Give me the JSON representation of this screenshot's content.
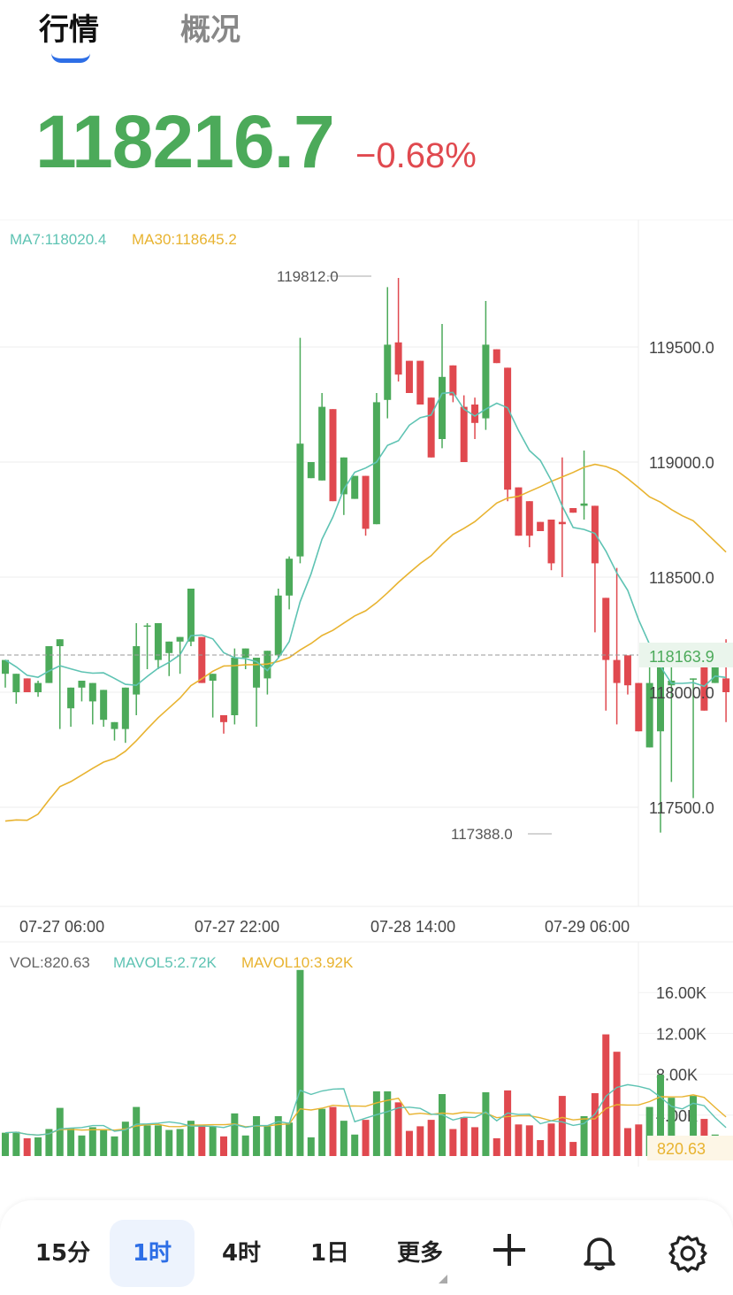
{
  "tabs": {
    "market": "行情",
    "overview": "概况"
  },
  "price": "118216.7",
  "change": "−0.68%",
  "colors": {
    "up": "#4caa5a",
    "down": "#e0494f",
    "ma7": "#5ec3b3",
    "ma30": "#e8b330",
    "accent": "#2d6ee6"
  },
  "indicators": {
    "ma7": "MA7:118020.4",
    "ma30": "MA30:118645.2",
    "vol": "VOL:820.63",
    "mavol5": "MAVOL5:2.72K",
    "mavol10": "MAVOL10:3.92K"
  },
  "chart_data": {
    "type": "candlestick",
    "price_axis": {
      "ticks": [
        "119500.0",
        "119000.0",
        "118500.0",
        "118000.0",
        "117500.0"
      ],
      "range": [
        117100,
        119950
      ]
    },
    "time_labels": [
      "07-27 06:00",
      "07-27 22:00",
      "07-28 14:00",
      "07-29 06:00"
    ],
    "current_price_label": "118163.9",
    "high_label": "119812.0",
    "low_label": "117388.0",
    "candles": [
      [
        118080,
        118140,
        118020,
        118000
      ],
      [
        118000,
        118080,
        117950,
        118060
      ],
      [
        118060,
        118000,
        118030,
        117990
      ],
      [
        118000,
        118040,
        117980,
        118050
      ],
      [
        118040,
        118200,
        118200,
        118020
      ],
      [
        118200,
        118230,
        117840,
        117900
      ],
      [
        117930,
        118020,
        117850,
        118020
      ],
      [
        118020,
        118050,
        117960,
        117970
      ],
      [
        117960,
        118040,
        117860,
        117880
      ],
      [
        117880,
        118010,
        117850,
        117840
      ],
      [
        117840,
        117870,
        117790,
        117800
      ],
      [
        117840,
        118020,
        117780,
        118000
      ],
      [
        117990,
        118200,
        117900,
        118300
      ],
      [
        118290,
        118290,
        118100,
        118300
      ],
      [
        118140,
        118300,
        118100,
        118190
      ],
      [
        118170,
        118220,
        118070,
        118130
      ],
      [
        118220,
        118240,
        118080,
        118210
      ],
      [
        118220,
        118450,
        118200,
        118260
      ],
      [
        118240,
        118040,
        118170,
        117950
      ],
      [
        118050,
        118080,
        117890,
        117830
      ],
      [
        117900,
        117870,
        117820,
        117780
      ],
      [
        117900,
        118150,
        117860,
        118190
      ],
      [
        118150,
        118190,
        118100,
        118020
      ],
      [
        118020,
        118150,
        117850,
        117980
      ],
      [
        118060,
        118180,
        117990,
        118130
      ],
      [
        118160,
        118420,
        118150,
        118450
      ],
      [
        118420,
        118580,
        118360,
        118590
      ],
      [
        118590,
        119080,
        118560,
        119540
      ],
      [
        118930,
        119000,
        119040,
        118780
      ],
      [
        118920,
        119240,
        118930,
        119300
      ],
      [
        119230,
        118830,
        118830,
        118840
      ],
      [
        118860,
        119020,
        118770,
        119000
      ],
      [
        118840,
        118940,
        118870,
        118750
      ],
      [
        118940,
        118710,
        118680,
        118700
      ],
      [
        118730,
        119260,
        118730,
        119300
      ],
      [
        119270,
        119510,
        119190,
        119760
      ],
      [
        119520,
        119380,
        119350,
        119800
      ],
      [
        119440,
        119300,
        119460,
        119200
      ],
      [
        119440,
        119250,
        119270,
        119170
      ],
      [
        119280,
        119020,
        119080,
        118950
      ],
      [
        119100,
        119370,
        119060,
        119600
      ],
      [
        119420,
        119290,
        119260,
        119150
      ],
      [
        119240,
        119000,
        119140,
        119290
      ],
      [
        119250,
        119170,
        119100,
        119280
      ],
      [
        119190,
        119510,
        119140,
        119700
      ],
      [
        119490,
        119430,
        119650,
        119470
      ],
      [
        119410,
        118880,
        118830,
        118610
      ],
      [
        118890,
        118680,
        118740,
        118600
      ],
      [
        118830,
        118680,
        118630,
        118550
      ],
      [
        118740,
        118700,
        118780,
        118490
      ],
      [
        118750,
        118560,
        118530,
        118440
      ],
      [
        118740,
        118730,
        118500,
        119020
      ],
      [
        118800,
        118780,
        119010,
        118710
      ],
      [
        118810,
        118820,
        118750,
        119050
      ],
      [
        118810,
        118560,
        118260,
        118400
      ],
      [
        118410,
        118140,
        117920,
        117950
      ],
      [
        118140,
        118040,
        117860,
        118540
      ],
      [
        118160,
        118030,
        117990,
        118080
      ],
      [
        118040,
        117830,
        117890,
        117960
      ],
      [
        117760,
        118040,
        117810,
        118160
      ],
      [
        117830,
        118140,
        117390,
        118010
      ],
      [
        118030,
        118050,
        117610,
        118110
      ],
      [
        118110,
        118140,
        118160,
        118070
      ],
      [
        118060,
        118060,
        117540,
        117890
      ],
      [
        118190,
        117920,
        118110,
        117860
      ],
      [
        118040,
        118140,
        118210,
        117980
      ],
      [
        118060,
        118000,
        117870,
        118230
      ]
    ],
    "volume_axis": {
      "ticks": [
        "16.00K",
        "12.00K",
        "8.00K",
        "4.00K"
      ],
      "max": 18000
    },
    "current_volume_label": "820.63"
  },
  "bottom_bar": {
    "b15m": "15分",
    "b1h": "1时",
    "b4h": "4时",
    "b1d": "1日",
    "more": "更多"
  }
}
